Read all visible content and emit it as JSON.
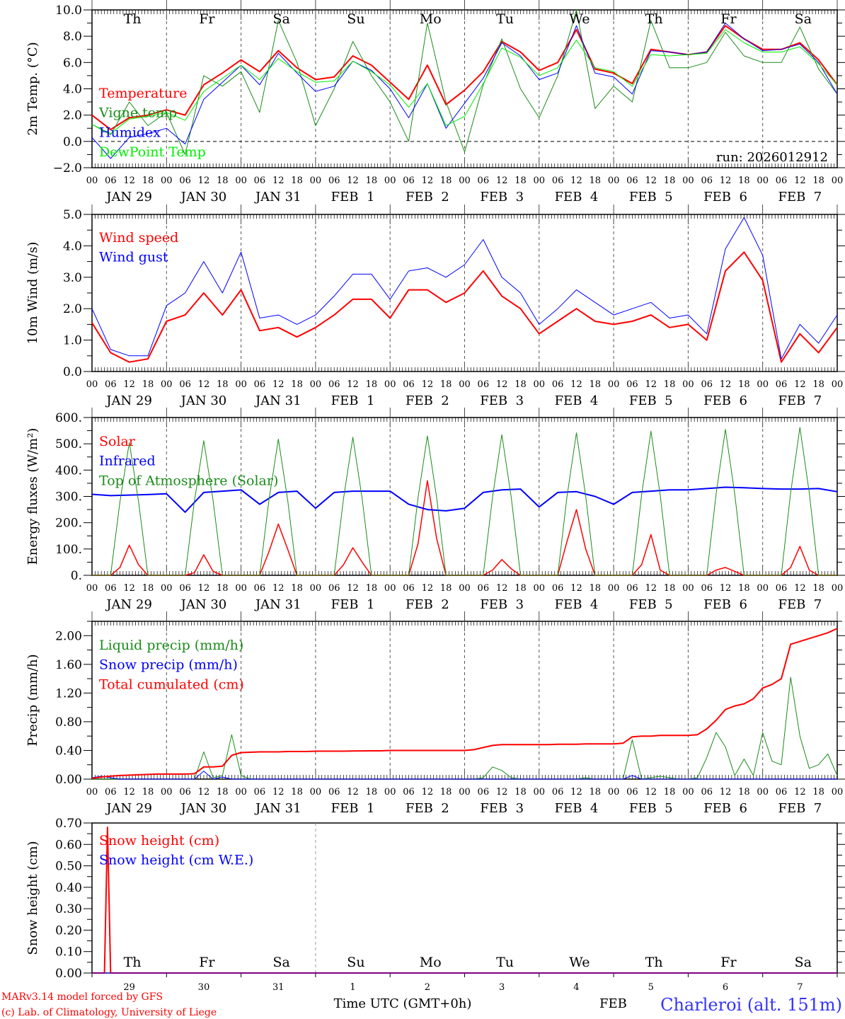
{
  "time_axis": {
    "hour_labels": [
      "00",
      "06",
      "12",
      "18"
    ],
    "date_labels": [
      "JAN 29",
      "JAN 30",
      "JAN 31",
      "FEB  1",
      "FEB  2",
      "FEB  3",
      "FEB  4",
      "FEB  5",
      "FEB  6",
      "FEB  7"
    ],
    "weekdays": [
      "Th",
      "Fr",
      "Sa",
      "Su",
      "Mo",
      "Tu",
      "We",
      "Th",
      "Fr",
      "Sa"
    ],
    "weekend": [
      "Sa",
      "Su"
    ],
    "weekend_color": "#ff2020",
    "day_numbers": [
      "29",
      "30",
      "31",
      "1",
      "2",
      "3",
      "4",
      "5",
      "6",
      "7"
    ],
    "month_label": "FEB",
    "xlabel": "Time UTC (GMT+0h)",
    "hours_total": 240
  },
  "footer": {
    "credit_line1": "MARv3.14 model forced by GFS",
    "credit_line2": "(c) Lab. of Climatology, University of Liege",
    "station": "Charleroi (alt. 151m)"
  },
  "chart_data": [
    {
      "type": "line",
      "ylabel": "2m Temp. (°C)",
      "ylim": [
        -2,
        10
      ],
      "yticks": [
        "−2.0",
        "0.0",
        "2.0",
        "4.0",
        "6.0",
        "8.0",
        "10.0"
      ],
      "annotation": "run: 2026012912",
      "series": [
        {
          "name": "Temperature",
          "color": "#ff0000",
          "width": 2,
          "step_hours": 6,
          "values": [
            2.0,
            0.9,
            1.8,
            2.0,
            2.4,
            2.0,
            4.3,
            5.2,
            6.2,
            5.3,
            6.9,
            5.6,
            4.7,
            4.9,
            6.5,
            5.8,
            4.5,
            3.2,
            5.8,
            2.8,
            3.9,
            5.3,
            7.6,
            6.8,
            5.4,
            6.0,
            8.5,
            5.5,
            5.2,
            4.4,
            7.0,
            6.8,
            6.6,
            6.8,
            8.8,
            7.8,
            7.0,
            7.0,
            7.5,
            6.2,
            4.3
          ]
        },
        {
          "name": "Vigne temp",
          "color": "#1a8c1a",
          "width": 1,
          "step_hours": 6,
          "values": [
            1.3,
            0.5,
            3.0,
            1.2,
            2.2,
            -1.0,
            5.0,
            4.2,
            5.3,
            2.2,
            9.2,
            6.0,
            1.2,
            4.0,
            7.6,
            5.0,
            3.0,
            0.0,
            9.0,
            3.0,
            -0.8,
            4.3,
            7.8,
            4.0,
            1.8,
            5.0,
            10.0,
            2.5,
            4.2,
            3.0,
            9.2,
            5.6,
            5.6,
            6.0,
            8.3,
            6.5,
            6.0,
            6.0,
            8.7,
            5.5,
            3.6
          ]
        },
        {
          "name": "Humidex",
          "color": "#0000ff",
          "width": 1,
          "step_hours": 6,
          "values": [
            0.3,
            -1.3,
            0.3,
            0.6,
            1.0,
            -0.2,
            3.2,
            4.5,
            5.8,
            4.3,
            6.7,
            5.2,
            3.8,
            4.2,
            6.1,
            5.4,
            4.0,
            1.8,
            4.4,
            1.0,
            2.9,
            4.8,
            7.5,
            6.5,
            4.7,
            5.2,
            8.8,
            5.2,
            4.9,
            3.6,
            6.9,
            6.8,
            6.6,
            6.8,
            9.0,
            7.8,
            6.9,
            7.0,
            7.4,
            6.0,
            3.6
          ]
        },
        {
          "name": "DewPoint Temp",
          "color": "#00ee00",
          "width": 1,
          "step_hours": 6,
          "values": [
            1.3,
            0.6,
            1.7,
            1.9,
            2.2,
            1.6,
            3.8,
            4.8,
            5.8,
            4.7,
            6.3,
            5.3,
            4.5,
            4.6,
            6.1,
            5.3,
            4.3,
            2.6,
            4.4,
            1.2,
            1.9,
            4.4,
            7.1,
            6.4,
            5.0,
            5.6,
            7.7,
            5.6,
            5.3,
            4.2,
            6.6,
            6.5,
            6.6,
            6.7,
            8.5,
            7.5,
            6.8,
            6.8,
            7.2,
            5.9,
            4.3
          ]
        }
      ]
    },
    {
      "type": "line",
      "ylabel": "10m Wind (m/s)",
      "ylim": [
        0,
        5
      ],
      "yticks": [
        "0.0",
        "1.0",
        "2.0",
        "3.0",
        "4.0",
        "5.0"
      ],
      "series": [
        {
          "name": "Wind speed",
          "color": "#ff0000",
          "width": 2,
          "step_hours": 6,
          "values": [
            1.55,
            0.6,
            0.3,
            0.4,
            1.6,
            1.8,
            2.5,
            1.8,
            2.6,
            1.3,
            1.4,
            1.1,
            1.4,
            1.8,
            2.3,
            2.3,
            1.7,
            2.6,
            2.6,
            2.2,
            2.5,
            3.2,
            2.4,
            2.0,
            1.2,
            1.6,
            2.0,
            1.6,
            1.5,
            1.6,
            1.8,
            1.4,
            1.5,
            1.0,
            3.2,
            3.8,
            2.9,
            0.3,
            1.2,
            0.6,
            1.4
          ]
        },
        {
          "name": "Wind gust",
          "color": "#0000ff",
          "width": 1,
          "step_hours": 6,
          "values": [
            2.0,
            0.7,
            0.5,
            0.5,
            2.1,
            2.5,
            3.5,
            2.5,
            3.8,
            1.7,
            1.8,
            1.5,
            1.8,
            2.4,
            3.1,
            3.1,
            2.3,
            3.2,
            3.3,
            3.0,
            3.4,
            4.2,
            3.0,
            2.5,
            1.5,
            2.0,
            2.6,
            2.2,
            1.8,
            2.0,
            2.2,
            1.7,
            1.8,
            1.2,
            3.9,
            4.9,
            3.7,
            0.4,
            1.5,
            0.9,
            1.8
          ]
        }
      ]
    },
    {
      "type": "line",
      "ylabel": "Energy fluxes (W/m²)",
      "ylim": [
        0,
        600
      ],
      "yticks": [
        "0.",
        "100.",
        "200.",
        "300.",
        "400.",
        "500.",
        "600."
      ],
      "series": [
        {
          "name": "Solar",
          "color": "#ff0000",
          "width": 1.5,
          "step_hours": 3,
          "values": [
            0,
            0,
            0,
            30,
            115,
            40,
            0,
            0,
            0,
            0,
            0,
            10,
            78,
            15,
            0,
            0,
            0,
            0,
            0,
            90,
            195,
            100,
            0,
            0,
            0,
            0,
            0,
            40,
            105,
            50,
            0,
            0,
            0,
            0,
            0,
            120,
            360,
            140,
            0,
            0,
            0,
            0,
            0,
            20,
            60,
            25,
            0,
            0,
            0,
            0,
            0,
            130,
            250,
            100,
            0,
            0,
            0,
            0,
            0,
            40,
            155,
            20,
            0,
            0,
            0,
            0,
            0,
            20,
            30,
            15,
            0,
            0,
            0,
            0,
            0,
            30,
            110,
            20,
            0,
            0,
            0
          ]
        },
        {
          "name": "Infrared",
          "color": "#0000ff",
          "width": 2,
          "step_hours": 6,
          "values": [
            308,
            303,
            305,
            307,
            310,
            240,
            315,
            320,
            325,
            270,
            315,
            320,
            255,
            315,
            320,
            320,
            320,
            270,
            250,
            245,
            255,
            315,
            325,
            328,
            260,
            315,
            318,
            300,
            270,
            315,
            320,
            325,
            325,
            330,
            335,
            333,
            330,
            328,
            328,
            330,
            318
          ]
        },
        {
          "name": "Top of Atmosphere (Solar)",
          "color": "#1a8c1a",
          "width": 1,
          "step_hours": 3,
          "values": [
            0,
            0,
            0,
            280,
            505,
            280,
            0,
            0,
            0,
            0,
            0,
            284,
            512,
            284,
            0,
            0,
            0,
            0,
            0,
            288,
            518,
            288,
            0,
            0,
            0,
            0,
            0,
            292,
            525,
            292,
            0,
            0,
            0,
            0,
            0,
            295,
            530,
            295,
            0,
            0,
            0,
            0,
            0,
            298,
            535,
            298,
            0,
            0,
            0,
            0,
            0,
            302,
            542,
            302,
            0,
            0,
            0,
            0,
            0,
            305,
            548,
            305,
            0,
            0,
            0,
            0,
            0,
            310,
            555,
            310,
            0,
            0,
            0,
            0,
            0,
            314,
            562,
            314,
            0,
            0,
            0
          ]
        }
      ]
    },
    {
      "type": "line",
      "ylabel": "Precip (mm/h)",
      "ylim": [
        0,
        2.2
      ],
      "yticks": [
        "0.00",
        "0.40",
        "0.80",
        "1.20",
        "1.60",
        "2.00"
      ],
      "series": [
        {
          "name": "Liquid precip (mm/h)",
          "color": "#1a8c1a",
          "width": 1,
          "step_hours": 3,
          "values": [
            0,
            0,
            0,
            0,
            0,
            0,
            0,
            0,
            0,
            0,
            0,
            0,
            0.38,
            0.02,
            0.05,
            0.62,
            0.05,
            0,
            0,
            0,
            0,
            0,
            0,
            0,
            0,
            0,
            0,
            0,
            0,
            0,
            0,
            0,
            0,
            0,
            0,
            0,
            0,
            0,
            0,
            0,
            0,
            0,
            0.02,
            0.17,
            0.12,
            0.02,
            0,
            0,
            0,
            0,
            0,
            0,
            0,
            0.02,
            0,
            0,
            0,
            0,
            0.55,
            0,
            0.02,
            0.04,
            0.02,
            0,
            0,
            0.02,
            0.3,
            0.65,
            0.45,
            0.05,
            0.28,
            0.05,
            0.65,
            0.25,
            0.2,
            1.42,
            0.6,
            0.15,
            0.2,
            0.35,
            0.05
          ]
        },
        {
          "name": "Snow precip (mm/h)",
          "color": "#0000ff",
          "width": 1,
          "step_hours": 3,
          "values": [
            0.02,
            0.04,
            0.02,
            0,
            0,
            0,
            0,
            0,
            0,
            0,
            0,
            0,
            0.11,
            0,
            0.03,
            0,
            0,
            0,
            0,
            0,
            0,
            0,
            0,
            0,
            0,
            0,
            0,
            0,
            0,
            0,
            0,
            0,
            0,
            0,
            0,
            0,
            0,
            0,
            0,
            0,
            0,
            0,
            0,
            0,
            0,
            0,
            0,
            0,
            0,
            0,
            0,
            0,
            0,
            0,
            0,
            0,
            0,
            0,
            0.05,
            0,
            0,
            0,
            0,
            0,
            0,
            0,
            0,
            0,
            0,
            0,
            0,
            0,
            0,
            0,
            0,
            0,
            0,
            0,
            0,
            0,
            0
          ]
        },
        {
          "name": "Total cumulated (cm)",
          "color": "#ff0000",
          "width": 2,
          "step_hours": 3,
          "values": [
            0.01,
            0.03,
            0.04,
            0.05,
            0.055,
            0.06,
            0.065,
            0.07,
            0.07,
            0.07,
            0.07,
            0.075,
            0.17,
            0.17,
            0.18,
            0.33,
            0.37,
            0.375,
            0.38,
            0.38,
            0.38,
            0.385,
            0.385,
            0.385,
            0.39,
            0.39,
            0.39,
            0.39,
            0.392,
            0.394,
            0.395,
            0.395,
            0.4,
            0.4,
            0.4,
            0.4,
            0.4,
            0.4,
            0.4,
            0.4,
            0.4,
            0.41,
            0.44,
            0.47,
            0.48,
            0.48,
            0.48,
            0.48,
            0.48,
            0.48,
            0.485,
            0.485,
            0.485,
            0.49,
            0.49,
            0.49,
            0.49,
            0.5,
            0.59,
            0.6,
            0.6,
            0.61,
            0.61,
            0.61,
            0.61,
            0.62,
            0.7,
            0.82,
            0.97,
            1.02,
            1.05,
            1.12,
            1.27,
            1.32,
            1.4,
            1.88,
            1.92,
            1.96,
            2.0,
            2.04,
            2.1
          ]
        }
      ]
    },
    {
      "type": "line",
      "ylabel": "Snow height (cm)",
      "ylim": [
        0,
        0.7
      ],
      "yticks": [
        "0.00",
        "0.10",
        "0.20",
        "0.30",
        "0.40",
        "0.50",
        "0.60",
        "0.70"
      ],
      "series": [
        {
          "name": "Snow height (cm)",
          "color": "#ff0000",
          "width": 2,
          "points": [
            [
              0,
              0
            ],
            [
              4,
              0
            ],
            [
              5,
              0.68
            ],
            [
              6,
              0
            ],
            [
              240,
              0
            ]
          ]
        },
        {
          "name": "Snow height (cm W.E.)",
          "color": "#0000ff",
          "width": 1,
          "points": [
            [
              0,
              0
            ],
            [
              240,
              0
            ]
          ]
        }
      ]
    }
  ]
}
